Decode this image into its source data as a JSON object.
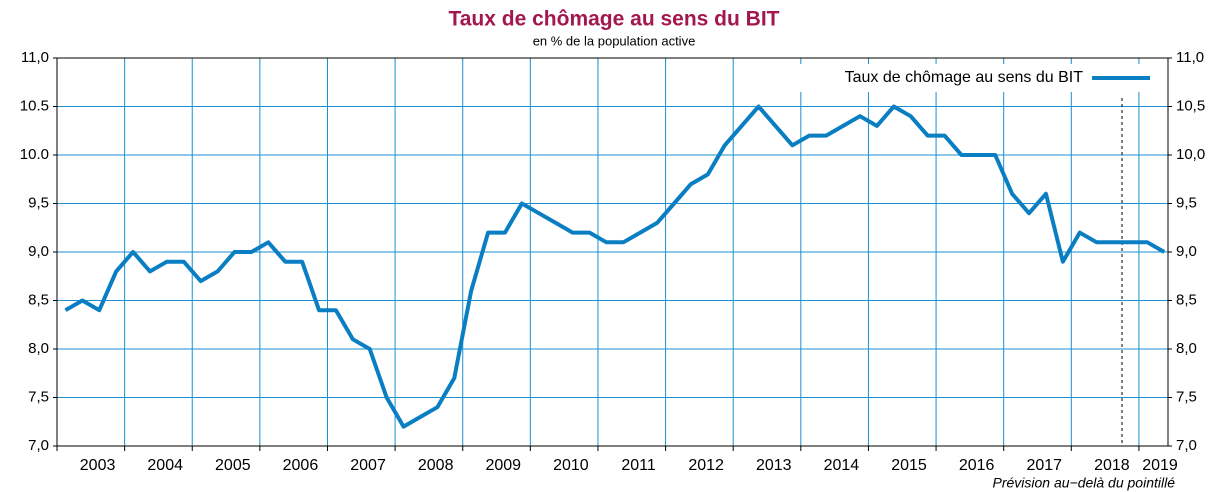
{
  "chart_data": {
    "type": "line",
    "title": "Taux de chômage au sens du BIT",
    "subtitle": "en % de la population active",
    "annotation": "Prévision au−delà du pointillé",
    "forecast_start": 2018.75,
    "legend": "upper right",
    "grid": true,
    "x": [
      2003.125,
      2003.375,
      2003.625,
      2003.875,
      2004.125,
      2004.375,
      2004.625,
      2004.875,
      2005.125,
      2005.375,
      2005.625,
      2005.875,
      2006.125,
      2006.375,
      2006.625,
      2006.875,
      2007.125,
      2007.375,
      2007.625,
      2007.875,
      2008.125,
      2008.375,
      2008.625,
      2008.875,
      2009.125,
      2009.375,
      2009.625,
      2009.875,
      2010.125,
      2010.375,
      2010.625,
      2010.875,
      2011.125,
      2011.375,
      2011.625,
      2011.875,
      2012.125,
      2012.375,
      2012.625,
      2012.875,
      2013.125,
      2013.375,
      2013.625,
      2013.875,
      2014.125,
      2014.375,
      2014.625,
      2014.875,
      2015.125,
      2015.375,
      2015.625,
      2015.875,
      2016.125,
      2016.375,
      2016.625,
      2016.875,
      2017.125,
      2017.375,
      2017.625,
      2017.875,
      2018.125,
      2018.375,
      2018.625,
      2018.875,
      2019.125,
      2019.375
    ],
    "series": [
      {
        "name": "Taux de chômage au sens du BIT",
        "color": "#0a7ec2",
        "values": [
          8.4,
          8.5,
          8.4,
          8.8,
          9.0,
          8.8,
          8.9,
          8.9,
          8.7,
          8.8,
          9.0,
          9.0,
          9.1,
          8.9,
          8.9,
          8.4,
          8.4,
          8.1,
          8.0,
          7.5,
          7.2,
          7.3,
          7.4,
          7.7,
          8.6,
          9.2,
          9.2,
          9.5,
          9.4,
          9.3,
          9.2,
          9.2,
          9.1,
          9.1,
          9.2,
          9.3,
          9.5,
          9.7,
          9.8,
          10.1,
          10.3,
          10.5,
          10.3,
          10.1,
          10.2,
          10.2,
          10.3,
          10.4,
          10.3,
          10.5,
          10.4,
          10.2,
          10.2,
          10.0,
          10.0,
          10.0,
          9.6,
          9.4,
          9.6,
          8.9,
          9.2,
          9.1,
          9.1,
          9.1,
          9.1,
          9.0
        ]
      }
    ],
    "xlim": [
      2003,
      2019.43
    ],
    "xticks": [
      {
        "value": 2003,
        "label": "2003"
      },
      {
        "value": 2004,
        "label": "2004"
      },
      {
        "value": 2005,
        "label": "2005"
      },
      {
        "value": 2006,
        "label": "2006"
      },
      {
        "value": 2007,
        "label": "2007"
      },
      {
        "value": 2008,
        "label": "2008"
      },
      {
        "value": 2009,
        "label": "2009"
      },
      {
        "value": 2010,
        "label": "2010"
      },
      {
        "value": 2011,
        "label": "2011"
      },
      {
        "value": 2012,
        "label": "2012"
      },
      {
        "value": 2013,
        "label": "2013"
      },
      {
        "value": 2014,
        "label": "2014"
      },
      {
        "value": 2015,
        "label": "2015"
      },
      {
        "value": 2016,
        "label": "2016"
      },
      {
        "value": 2017,
        "label": "2017"
      },
      {
        "value": 2018,
        "label": "2018"
      },
      {
        "value": 2019,
        "label": "2019"
      }
    ],
    "ylim": [
      7.0,
      11.0
    ],
    "yticks": [
      {
        "value": 7.0,
        "label": "7,0"
      },
      {
        "value": 7.5,
        "label": "7,5"
      },
      {
        "value": 8.0,
        "label": "8,0"
      },
      {
        "value": 8.5,
        "label": "8,5"
      },
      {
        "value": 9.0,
        "label": "9,0"
      },
      {
        "value": 9.5,
        "label": "9,5"
      },
      {
        "value": 10.0,
        "label": "10.0"
      },
      {
        "value": 10.5,
        "label": "10.5"
      },
      {
        "value": 11.0,
        "label": "11,0"
      }
    ],
    "y2lim": [
      7.0,
      11.0
    ],
    "y2ticks": [
      {
        "value": 7.0,
        "label": "7,0"
      },
      {
        "value": 7.5,
        "label": "7,5"
      },
      {
        "value": 8.0,
        "label": "8,0"
      },
      {
        "value": 8.5,
        "label": "8,5"
      },
      {
        "value": 9.0,
        "label": "9,0"
      },
      {
        "value": 9.5,
        "label": "9,5"
      },
      {
        "value": 10.0,
        "label": "10,0"
      },
      {
        "value": 10.5,
        "label": "10,5"
      },
      {
        "value": 11.0,
        "label": "11,0"
      }
    ]
  }
}
